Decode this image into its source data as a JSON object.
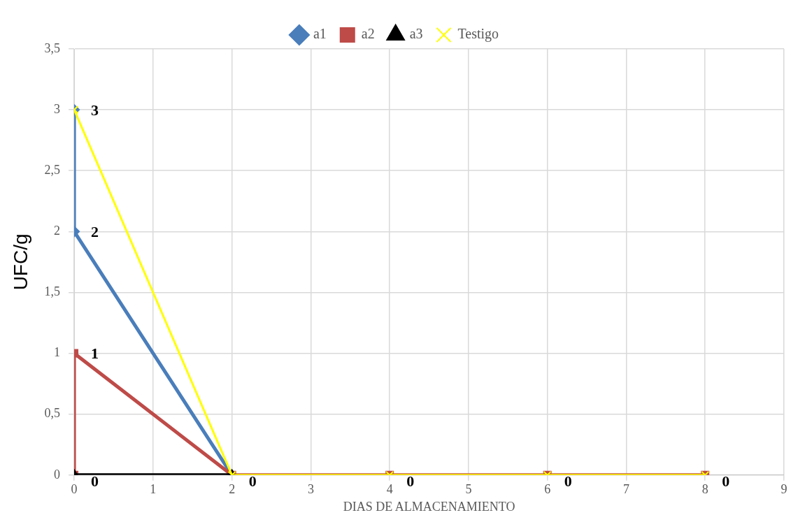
{
  "chart_data": {
    "type": "line",
    "xlabel": "DIAS DE ALMACENAMIENTO",
    "ylabel": "UFC/g",
    "x": [
      0,
      0,
      2,
      4,
      6,
      8
    ],
    "series": [
      {
        "name": "a1",
        "color": "#4a7ebb",
        "marker": "diamond",
        "values": [
          3,
          2,
          0,
          null,
          null,
          null
        ],
        "value_labels": [
          null,
          "2",
          null,
          null,
          null,
          null
        ]
      },
      {
        "name": "a2",
        "color": "#be4b48",
        "marker": "square",
        "values": [
          0,
          1,
          0,
          0,
          0,
          0
        ],
        "value_labels": [
          null,
          "1",
          "0",
          "0",
          "0",
          "0"
        ]
      },
      {
        "name": "a3",
        "color": "#000000",
        "marker": "triangle",
        "values": [
          0,
          0,
          0,
          null,
          null,
          null
        ],
        "value_labels": [
          "0",
          null,
          null,
          null,
          null,
          null
        ]
      },
      {
        "name": "Testigo",
        "color": "#ffff00",
        "marker": "cross",
        "values": [
          3,
          3,
          0,
          0,
          0,
          0
        ],
        "value_labels": [
          "3",
          null,
          null,
          null,
          null,
          null
        ]
      }
    ],
    "xlim": [
      0,
      9
    ],
    "xticks": [
      0,
      1,
      2,
      3,
      4,
      5,
      6,
      7,
      8,
      9
    ],
    "ylim": [
      0,
      3.5
    ],
    "yticks": [
      {
        "value": 0,
        "label": "0"
      },
      {
        "value": 0.5,
        "label": "0,5"
      },
      {
        "value": 1,
        "label": "1"
      },
      {
        "value": 1.5,
        "label": "1,5"
      },
      {
        "value": 2,
        "label": "2"
      },
      {
        "value": 2.5,
        "label": "2,5"
      },
      {
        "value": 3,
        "label": "3"
      },
      {
        "value": 3.5,
        "label": "3,5"
      }
    ],
    "grid": true,
    "legend": "top"
  }
}
